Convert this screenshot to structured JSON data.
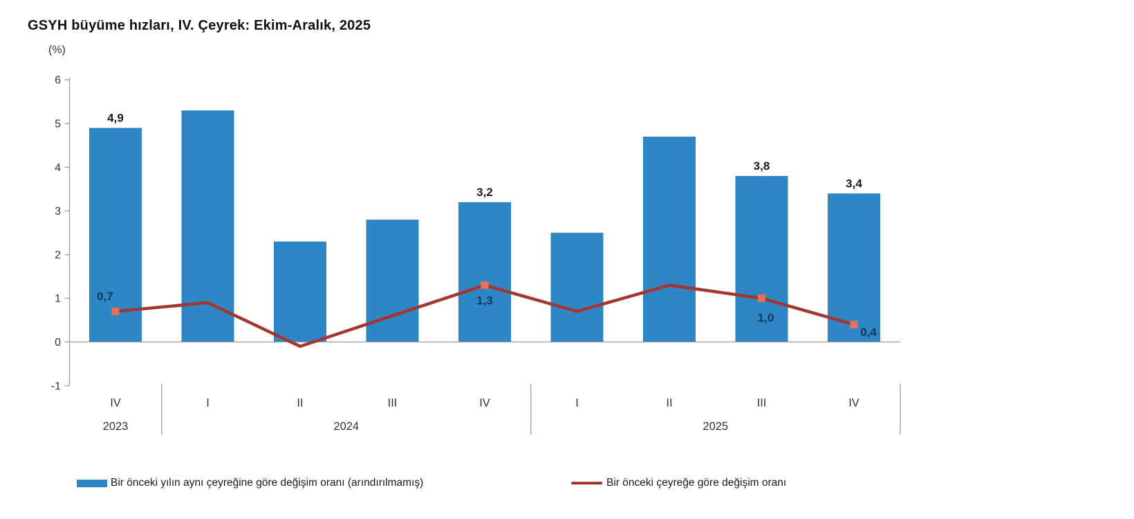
{
  "chart_data": {
    "type": "bar+line",
    "title": "GSYH büyüme hızları, IV. Çeyrek: Ekim-Aralık, 2025",
    "ylabel": "(%)",
    "xlabel": "",
    "ylim": [
      -1,
      6
    ],
    "y_axis_ticks": [
      6,
      5,
      4,
      3,
      2,
      1,
      0,
      -1
    ],
    "grid": false,
    "legend_position": "bottom",
    "axis_color": "#999999",
    "categories": [
      "IV",
      "I",
      "II",
      "III",
      "IV",
      "I",
      "II",
      "III",
      "IV"
    ],
    "year_groups": [
      {
        "label": "2023",
        "start": 0,
        "end": 0
      },
      {
        "label": "2024",
        "start": 1,
        "end": 4
      },
      {
        "label": "2025",
        "start": 5,
        "end": 8
      }
    ],
    "series": [
      {
        "name": "Bir önceki yılın aynı çeyreğine göre değişim oranı (arındırılmamış)",
        "type": "bar",
        "color": "#2e86c5",
        "label_color": "#1a1a1a",
        "values": [
          4.9,
          5.3,
          2.3,
          2.8,
          3.2,
          2.5,
          4.7,
          3.8,
          3.4
        ],
        "labels": [
          "4,9",
          null,
          null,
          null,
          "3,2",
          null,
          null,
          "3,8",
          "3,4"
        ]
      },
      {
        "name": "Bir önceki çeyreğe göre değişim oranı",
        "type": "line",
        "color": "#a33631",
        "marker_color": "#e5705c",
        "label_color": "#17365d",
        "values": [
          0.7,
          0.9,
          -0.1,
          0.6,
          1.3,
          0.7,
          1.3,
          1.0,
          0.4
        ],
        "labels": [
          "0,7",
          null,
          null,
          null,
          "1,3",
          null,
          null,
          "1,0",
          "0,4"
        ],
        "markers": [
          true,
          false,
          false,
          false,
          true,
          false,
          false,
          true,
          true
        ]
      }
    ]
  }
}
